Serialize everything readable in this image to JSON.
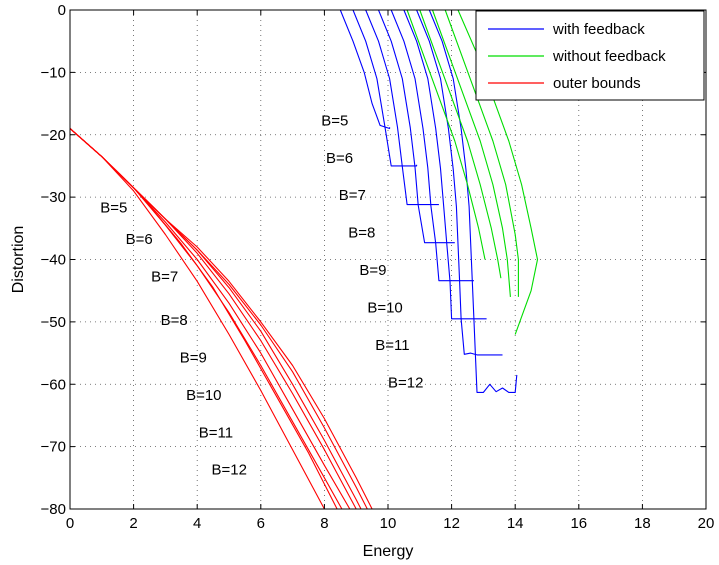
{
  "chart_data": {
    "type": "line",
    "title": "",
    "xlabel": "Energy",
    "ylabel": "Distortion",
    "xlim": [
      0,
      20
    ],
    "ylim": [
      -80,
      0
    ],
    "xticks": [
      0,
      2,
      4,
      6,
      8,
      10,
      12,
      14,
      16,
      18,
      20
    ],
    "yticks": [
      0,
      -10,
      -20,
      -30,
      -40,
      -50,
      -60,
      -70,
      -80
    ],
    "xtick_labels": [
      "0",
      "2",
      "4",
      "6",
      "8",
      "10",
      "12",
      "14",
      "16",
      "18",
      "20"
    ],
    "ytick_labels": [
      "0",
      "−10",
      "−20",
      "−30",
      "−40",
      "−50",
      "−60",
      "−70",
      "−80"
    ],
    "grid": true,
    "legend": "top-right",
    "colors": {
      "with_feedback": "#0000ff",
      "without_feedback": "#00dd00",
      "outer_bounds": "#ff0000"
    },
    "series": [
      {
        "name": "with feedback",
        "color": "#0000ff",
        "curves": [
          [
            [
              8.5,
              0
            ],
            [
              8.9,
              -5
            ],
            [
              9.25,
              -10
            ],
            [
              9.5,
              -15
            ],
            [
              9.75,
              -18.5
            ],
            [
              10.05,
              -19
            ],
            [
              10.05,
              -18.8
            ]
          ],
          [
            [
              8.9,
              0
            ],
            [
              9.3,
              -5
            ],
            [
              9.65,
              -11
            ],
            [
              9.9,
              -18.6
            ],
            [
              10.1,
              -25
            ],
            [
              10.9,
              -25
            ],
            [
              10.9,
              -24.8
            ]
          ],
          [
            [
              9.3,
              0
            ],
            [
              9.7,
              -5
            ],
            [
              10.05,
              -11
            ],
            [
              10.3,
              -18.8
            ],
            [
              10.45,
              -25.1
            ],
            [
              10.6,
              -31.2
            ],
            [
              11.6,
              -31.2
            ]
          ],
          [
            [
              9.7,
              0
            ],
            [
              10.1,
              -5
            ],
            [
              10.45,
              -11
            ],
            [
              10.7,
              -18.9
            ],
            [
              10.85,
              -25.2
            ],
            [
              10.95,
              -31.3
            ],
            [
              11.15,
              -37.3
            ],
            [
              12.1,
              -37.3
            ]
          ],
          [
            [
              10.1,
              0
            ],
            [
              10.5,
              -5
            ],
            [
              10.85,
              -11
            ],
            [
              11.1,
              -19
            ],
            [
              11.25,
              -25.3
            ],
            [
              11.35,
              -31.4
            ],
            [
              11.5,
              -37.4
            ],
            [
              11.6,
              -43.4
            ],
            [
              12.7,
              -43.4
            ]
          ],
          [
            [
              10.5,
              0
            ],
            [
              10.9,
              -5
            ],
            [
              11.25,
              -11
            ],
            [
              11.5,
              -19
            ],
            [
              11.65,
              -25.4
            ],
            [
              11.75,
              -31.5
            ],
            [
              11.85,
              -37.5
            ],
            [
              11.95,
              -43.5
            ],
            [
              12.0,
              -49.5
            ],
            [
              13.1,
              -49.5
            ]
          ],
          [
            [
              10.9,
              0
            ],
            [
              11.3,
              -5
            ],
            [
              11.65,
              -11
            ],
            [
              11.9,
              -19
            ],
            [
              12.05,
              -25.5
            ],
            [
              12.15,
              -31.5
            ],
            [
              12.2,
              -37.5
            ],
            [
              12.25,
              -43.5
            ],
            [
              12.3,
              -49.5
            ],
            [
              12.4,
              -55.2
            ],
            [
              12.6,
              -55.0
            ],
            [
              12.8,
              -55.3
            ],
            [
              13.6,
              -55.3
            ]
          ],
          [
            [
              11.3,
              0
            ],
            [
              11.7,
              -5
            ],
            [
              12.05,
              -11
            ],
            [
              12.3,
              -19
            ],
            [
              12.45,
              -25.5
            ],
            [
              12.55,
              -31.5
            ],
            [
              12.6,
              -37.5
            ],
            [
              12.65,
              -43.5
            ],
            [
              12.7,
              -49.5
            ],
            [
              12.75,
              -55.3
            ],
            [
              12.8,
              -61.3
            ],
            [
              13.0,
              -61.3
            ],
            [
              13.2,
              -60.0
            ],
            [
              13.4,
              -61.2
            ],
            [
              13.6,
              -60.6
            ],
            [
              13.8,
              -61.3
            ],
            [
              14.0,
              -61.3
            ],
            [
              14.05,
              -58.5
            ]
          ]
        ]
      },
      {
        "name": "without feedback",
        "color": "#00dd00",
        "curves": [
          [
            [
              10.6,
              0
            ],
            [
              11.1,
              -7
            ],
            [
              11.6,
              -14
            ],
            [
              12.1,
              -21
            ],
            [
              12.5,
              -28
            ],
            [
              12.85,
              -35
            ],
            [
              13.05,
              -40
            ]
          ],
          [
            [
              11.0,
              0
            ],
            [
              11.5,
              -7
            ],
            [
              12.0,
              -14
            ],
            [
              12.5,
              -21
            ],
            [
              12.9,
              -28
            ],
            [
              13.25,
              -35
            ],
            [
              13.45,
              -40
            ],
            [
              13.55,
              -43
            ]
          ],
          [
            [
              11.4,
              0
            ],
            [
              11.9,
              -7
            ],
            [
              12.4,
              -14
            ],
            [
              12.9,
              -21
            ],
            [
              13.3,
              -28
            ],
            [
              13.6,
              -35
            ],
            [
              13.75,
              -40
            ],
            [
              13.85,
              -46
            ]
          ],
          [
            [
              11.8,
              0
            ],
            [
              12.3,
              -7
            ],
            [
              12.8,
              -14
            ],
            [
              13.3,
              -21
            ],
            [
              13.7,
              -28
            ],
            [
              14.0,
              -36
            ],
            [
              14.1,
              -40
            ],
            [
              14.1,
              -46
            ]
          ],
          [
            [
              12.2,
              0
            ],
            [
              12.8,
              -7
            ],
            [
              13.3,
              -14
            ],
            [
              13.8,
              -21
            ],
            [
              14.2,
              -28
            ],
            [
              14.5,
              -35
            ],
            [
              14.7,
              -40
            ],
            [
              14.5,
              -45
            ],
            [
              14.0,
              -52
            ]
          ]
        ]
      },
      {
        "name": "outer bounds",
        "color": "#ff0000",
        "curves": [
          [
            [
              0,
              -19
            ],
            [
              1,
              -23.5
            ],
            [
              2,
              -29
            ],
            [
              3,
              -36
            ],
            [
              4,
              -43.5
            ],
            [
              5,
              -52
            ],
            [
              6,
              -61
            ],
            [
              7,
              -70.5
            ],
            [
              8,
              -80
            ]
          ],
          [
            [
              0,
              -19
            ],
            [
              1,
              -23.5
            ],
            [
              2,
              -28.5
            ],
            [
              2.6,
              -32
            ],
            [
              3.5,
              -37.5
            ],
            [
              4.5,
              -44.5
            ],
            [
              5.5,
              -53
            ],
            [
              6.5,
              -62
            ],
            [
              7.5,
              -71
            ],
            [
              8.4,
              -80
            ]
          ],
          [
            [
              0,
              -19
            ],
            [
              1,
              -23.5
            ],
            [
              2,
              -28.5
            ],
            [
              3,
              -34.5
            ],
            [
              4,
              -41
            ],
            [
              5,
              -48.5
            ],
            [
              6,
              -57
            ],
            [
              7,
              -66
            ],
            [
              8,
              -75
            ],
            [
              8.55,
              -80
            ]
          ],
          [
            [
              0,
              -19
            ],
            [
              1,
              -23.5
            ],
            [
              2,
              -28.5
            ],
            [
              3,
              -34
            ],
            [
              4,
              -40
            ],
            [
              5,
              -47
            ],
            [
              6,
              -55
            ],
            [
              7,
              -64
            ],
            [
              8,
              -73
            ],
            [
              8.8,
              -80
            ]
          ],
          [
            [
              0,
              -19
            ],
            [
              1,
              -23.5
            ],
            [
              2,
              -28.5
            ],
            [
              3,
              -33.5
            ],
            [
              4,
              -39
            ],
            [
              5,
              -45.5
            ],
            [
              6,
              -53
            ],
            [
              7,
              -61.5
            ],
            [
              8,
              -70.5
            ],
            [
              9,
              -80
            ]
          ],
          [
            [
              0,
              -19
            ],
            [
              1,
              -23.5
            ],
            [
              2,
              -28.5
            ],
            [
              3,
              -33.5
            ],
            [
              4,
              -38.5
            ],
            [
              5,
              -44.5
            ],
            [
              6,
              -51.5
            ],
            [
              7,
              -60
            ],
            [
              8,
              -69
            ],
            [
              9,
              -78.5
            ],
            [
              9.15,
              -80
            ]
          ],
          [
            [
              0,
              -19
            ],
            [
              1,
              -23.5
            ],
            [
              2,
              -28.5
            ],
            [
              3,
              -33.5
            ],
            [
              4,
              -38.5
            ],
            [
              5,
              -44
            ],
            [
              6,
              -50.5
            ],
            [
              7,
              -58
            ],
            [
              8,
              -67
            ],
            [
              9,
              -76.5
            ],
            [
              9.35,
              -80
            ]
          ],
          [
            [
              0,
              -19
            ],
            [
              1,
              -23.5
            ],
            [
              2,
              -28.5
            ],
            [
              3,
              -33.5
            ],
            [
              4,
              -38
            ],
            [
              5,
              -43.5
            ],
            [
              6,
              -50
            ],
            [
              7,
              -57
            ],
            [
              8,
              -65.5
            ],
            [
              9,
              -75
            ],
            [
              9.5,
              -80
            ]
          ]
        ]
      }
    ],
    "annotations_left": [
      {
        "text": "B=5",
        "x": 0.95,
        "y": -32.5
      },
      {
        "text": "B=6",
        "x": 1.75,
        "y": -37.5
      },
      {
        "text": "B=7",
        "x": 2.55,
        "y": -43.5
      },
      {
        "text": "B=8",
        "x": 2.85,
        "y": -50.5
      },
      {
        "text": "B=9",
        "x": 3.45,
        "y": -56.5
      },
      {
        "text": "B=10",
        "x": 3.65,
        "y": -62.5
      },
      {
        "text": "B=11",
        "x": 4.05,
        "y": -68.5
      },
      {
        "text": "B=12",
        "x": 4.45,
        "y": -74.5
      }
    ],
    "annotations_right": [
      {
        "text": "B=5",
        "x": 7.9,
        "y": -18.5
      },
      {
        "text": "B=6",
        "x": 8.05,
        "y": -24.5
      },
      {
        "text": "B=7",
        "x": 8.45,
        "y": -30.5
      },
      {
        "text": "B=8",
        "x": 8.75,
        "y": -36.5
      },
      {
        "text": "B=9",
        "x": 9.1,
        "y": -42.5
      },
      {
        "text": "B=10",
        "x": 9.35,
        "y": -48.5
      },
      {
        "text": "B=11",
        "x": 9.6,
        "y": -54.5
      },
      {
        "text": "B=12",
        "x": 10.0,
        "y": -60.5
      }
    ]
  }
}
